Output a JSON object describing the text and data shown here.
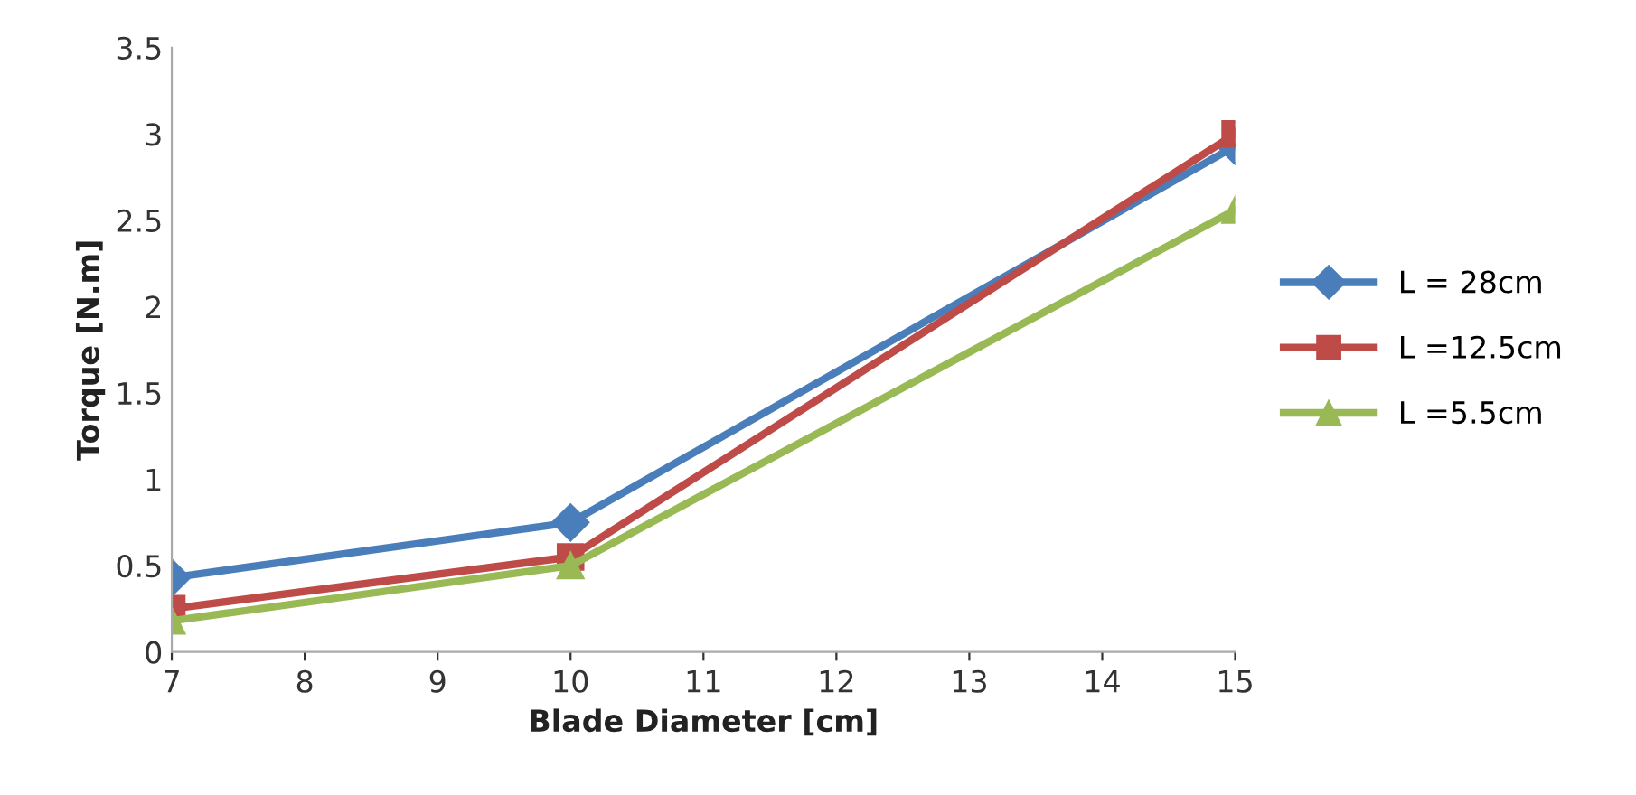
{
  "chart_data": {
    "type": "line",
    "xlabel": "Blade Diameter [cm]",
    "ylabel": "Torque [N.m]",
    "x": [
      7,
      10,
      15
    ],
    "series": [
      {
        "name": "L = 28cm",
        "color": "#4a7ebb",
        "marker": "diamond",
        "values": [
          0.43,
          0.75,
          2.93
        ]
      },
      {
        "name": "L =12.5cm",
        "color": "#be4b48",
        "marker": "square",
        "values": [
          0.25,
          0.55,
          3.0
        ]
      },
      {
        "name": "L =5.5cm",
        "color": "#98b954",
        "marker": "triangle",
        "values": [
          0.18,
          0.5,
          2.56
        ]
      }
    ],
    "xlim": [
      7,
      15
    ],
    "xticks": [
      7,
      8,
      9,
      10,
      11,
      12,
      13,
      14,
      15
    ],
    "ylim": [
      0,
      3.5
    ],
    "yticks": [
      0,
      0.5,
      1,
      1.5,
      2,
      2.5,
      3,
      3.5
    ],
    "grid": false,
    "legend": "right",
    "line_style": "solid"
  }
}
